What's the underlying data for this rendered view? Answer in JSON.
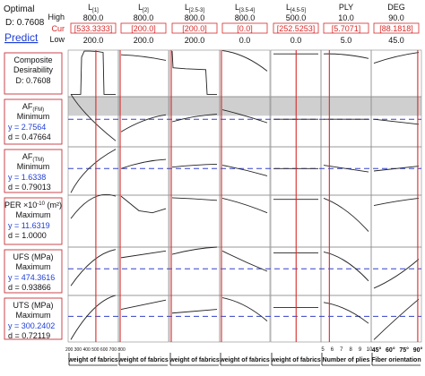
{
  "header": {
    "title": "Optimal",
    "d_text": "D: 0.7608",
    "predict_label": "Predict",
    "row_labels": {
      "high": "High",
      "cur": "Cur",
      "low": "Low"
    }
  },
  "factors": [
    {
      "name": "L",
      "sub": "[1]",
      "high": "800.0",
      "cur": "[533.3333]",
      "low": "200.0"
    },
    {
      "name": "L",
      "sub": "[2]",
      "high": "800.0",
      "cur": "[200.0]",
      "low": "200.0"
    },
    {
      "name": "L",
      "sub": "[2.5-3]",
      "high": "800.0",
      "cur": "[200.0]",
      "low": "200.0"
    },
    {
      "name": "L",
      "sub": "[3.5-4]",
      "high": "800.0",
      "cur": "[0.0]",
      "low": "0.0"
    },
    {
      "name": "L",
      "sub": "[4.5-5]",
      "high": "500.0",
      "cur": "[252.5253]",
      "low": "0.0"
    },
    {
      "name": "PLY",
      "sub": "",
      "high": "10.0",
      "cur": "[5.7071]",
      "low": "5.0"
    },
    {
      "name": "DEG",
      "sub": "",
      "high": "90.0",
      "cur": "[88.1818]",
      "low": "45.0"
    }
  ],
  "responses": [
    {
      "l1": "Composite",
      "l2": "Desirability",
      "l3": "D: 0.7608",
      "y": "",
      "d": ""
    },
    {
      "l1": "AF",
      "l1_sub": "(FM)",
      "l2": "Minimum",
      "y": "y = 2.7564",
      "d": "d = 0.47664"
    },
    {
      "l1": "AF",
      "l1_sub": "(TM)",
      "l2": "Minimum",
      "y": "y = 1.6338",
      "d": "d = 0.79013"
    },
    {
      "l1": "PER ×10",
      "l1_sup": "-10",
      "l1_tail": " (m²)",
      "l2": "Maximum",
      "y": "y = 11.6319",
      "d": "d = 1.0000"
    },
    {
      "l1": "UFS (MPa)",
      "l2": "Maximum",
      "y": "y = 474.3616",
      "d": "d = 0.93866"
    },
    {
      "l1": "UTS (MPa)",
      "l2": "Maximum",
      "y": "y = 300.2402",
      "d": "d = 0.72119"
    }
  ],
  "chart_data": {
    "type": "line",
    "factor_axes": {
      "x_ticks_first": [
        "200",
        "300",
        "400",
        "500",
        "600",
        "700",
        "800"
      ],
      "x_ticks_ply": [
        "5",
        "6",
        "7",
        "8",
        "9",
        "10"
      ],
      "x_ticks_deg": [
        "45°",
        "60°",
        "75°",
        "90°"
      ],
      "xlabels": [
        "weight of fabrics",
        "weight of fabrics",
        "weight of fabrics",
        "weight of fabrics",
        "weight of fabrics",
        "Number of plies",
        "Fiber orientation"
      ]
    },
    "current_x": [
      0.556,
      0.0,
      0.0,
      0.0,
      0.505,
      0.141,
      0.96
    ],
    "grey_band_rows": [
      1
    ],
    "response_curves": [
      [
        [
          [
            0,
            0.05
          ],
          [
            0.15,
            0.05
          ],
          [
            0.22,
            0.05
          ],
          [
            0.24,
            0.85
          ],
          [
            0.3,
            0.98
          ],
          [
            0.42,
            0.98
          ],
          [
            0.6,
            0.97
          ],
          [
            0.72,
            0.95
          ],
          [
            0.74,
            0.05
          ],
          [
            1,
            0.05
          ]
        ],
        [
          [
            0,
            0.9
          ],
          [
            0.5,
            0.86
          ],
          [
            1,
            0.78
          ]
        ],
        [
          [
            0,
            0.98
          ],
          [
            0.02,
            0.62
          ],
          [
            0.3,
            0.6
          ],
          [
            0.75,
            0.58
          ],
          [
            0.78,
            0.05
          ],
          [
            1,
            0.05
          ]
        ],
        [
          [
            0,
            0.99
          ],
          [
            0.5,
            0.85
          ],
          [
            1,
            0.55
          ]
        ],
        [
          [
            0,
            0.92
          ],
          [
            0.5,
            0.92
          ],
          [
            1,
            0.92
          ]
        ],
        [
          [
            0,
            0.92
          ],
          [
            0.5,
            0.9
          ],
          [
            1,
            0.82
          ]
        ],
        [
          [
            0,
            0.72
          ],
          [
            0.5,
            0.86
          ],
          [
            1,
            0.95
          ]
        ]
      ],
      [
        [
          [
            0,
            1.05
          ],
          [
            0.4,
            0.6
          ],
          [
            1,
            0.12
          ]
        ],
        [
          [
            0,
            0.3
          ],
          [
            0.5,
            0.52
          ],
          [
            1,
            0.64
          ]
        ],
        [
          [
            0,
            0.5
          ],
          [
            0.5,
            0.6
          ],
          [
            1,
            0.65
          ]
        ],
        [
          [
            0,
            0.74
          ],
          [
            0.5,
            0.62
          ],
          [
            1,
            0.48
          ]
        ],
        [
          [
            0,
            0.55
          ],
          [
            0.5,
            0.55
          ],
          [
            1,
            0.55
          ]
        ],
        [
          [
            0,
            0.55
          ],
          [
            0.5,
            0.55
          ],
          [
            1,
            0.55
          ]
        ],
        [
          [
            0,
            0.55
          ],
          [
            0.5,
            0.5
          ],
          [
            1,
            0.45
          ]
        ]
      ],
      [
        [
          [
            0,
            0.05
          ],
          [
            0.4,
            0.55
          ],
          [
            1,
            0.95
          ]
        ],
        [
          [
            0,
            0.55
          ],
          [
            0.5,
            0.68
          ],
          [
            1,
            0.74
          ]
        ],
        [
          [
            0,
            0.58
          ],
          [
            0.5,
            0.62
          ],
          [
            1,
            0.64
          ]
        ],
        [
          [
            0,
            0.62
          ],
          [
            0.5,
            0.52
          ],
          [
            1,
            0.4
          ]
        ],
        [
          [
            0,
            0.55
          ],
          [
            0.5,
            0.55
          ],
          [
            1,
            0.55
          ]
        ],
        [
          [
            0,
            0.62
          ],
          [
            0.5,
            0.55
          ],
          [
            1,
            0.48
          ]
        ],
        [
          [
            0,
            0.5
          ],
          [
            0.5,
            0.55
          ],
          [
            1,
            0.6
          ]
        ]
      ],
      [
        [
          [
            0,
            0.55
          ],
          [
            0.5,
            0.95
          ],
          [
            1,
            0.98
          ]
        ],
        [
          [
            0,
            0.98
          ],
          [
            0.4,
            0.7
          ],
          [
            0.7,
            0.66
          ],
          [
            1,
            0.74
          ]
        ],
        [
          [
            0,
            0.95
          ],
          [
            0.5,
            0.93
          ],
          [
            1,
            0.9
          ]
        ],
        [
          [
            0,
            0.94
          ],
          [
            0.5,
            0.82
          ],
          [
            1,
            0.66
          ]
        ],
        [
          [
            0,
            0.92
          ],
          [
            0.5,
            0.92
          ],
          [
            1,
            0.92
          ]
        ],
        [
          [
            0,
            0.94
          ],
          [
            0.5,
            0.7
          ],
          [
            1,
            0.3
          ]
        ],
        [
          [
            0,
            0.8
          ],
          [
            0.5,
            0.88
          ],
          [
            1,
            0.94
          ]
        ]
      ],
      [
        [
          [
            0,
            0.2
          ],
          [
            0.5,
            0.72
          ],
          [
            1,
            0.95
          ]
        ],
        [
          [
            0,
            0.78
          ],
          [
            0.5,
            0.85
          ],
          [
            1,
            0.92
          ]
        ],
        [
          [
            0,
            0.85
          ],
          [
            0.5,
            0.95
          ],
          [
            1,
            1.0
          ]
        ],
        [
          [
            0,
            0.92
          ],
          [
            0.5,
            0.7
          ],
          [
            1,
            0.5
          ]
        ],
        [
          [
            0,
            0.88
          ],
          [
            0.5,
            0.88
          ],
          [
            1,
            0.88
          ]
        ],
        [
          [
            0,
            0.9
          ],
          [
            0.5,
            0.7
          ],
          [
            1,
            0.3
          ]
        ],
        [
          [
            0,
            0.15
          ],
          [
            0.5,
            0.4
          ],
          [
            1,
            0.75
          ]
        ]
      ],
      [
        [
          [
            0,
            0.05
          ],
          [
            0.5,
            0.7
          ],
          [
            1,
            1.0
          ]
        ],
        [
          [
            0,
            0.7
          ],
          [
            0.5,
            0.8
          ],
          [
            1,
            0.9
          ]
        ],
        [
          [
            0,
            0.62
          ],
          [
            0.5,
            0.66
          ],
          [
            1,
            0.7
          ]
        ],
        [
          [
            0,
            0.95
          ],
          [
            0.5,
            0.78
          ],
          [
            1,
            0.45
          ]
        ],
        [
          [
            0,
            0.74
          ],
          [
            0.5,
            0.74
          ],
          [
            1,
            0.74
          ]
        ],
        [
          [
            0,
            0.85
          ],
          [
            0.5,
            0.7
          ],
          [
            1,
            0.4
          ]
        ],
        [
          [
            0,
            0.05
          ],
          [
            0.5,
            0.5
          ],
          [
            1,
            0.92
          ]
        ]
      ]
    ],
    "target_y_row": [
      null,
      0.55,
      0.55,
      null,
      0.55,
      0.55
    ],
    "colors": {
      "current_line": "#d62a2a",
      "target_line": "#3340c8",
      "curve": "#222222",
      "grey_band": "#cfcfcf",
      "label_border": "#c8333b",
      "cur_text": "#d62a2a",
      "y_value": "#1f3fd6",
      "predict": "#1f3fd6"
    }
  }
}
